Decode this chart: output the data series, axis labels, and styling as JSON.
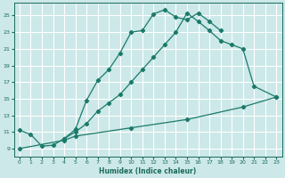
{
  "xlabel": "Humidex (Indice chaleur)",
  "bg_color": "#cce8e8",
  "grid_color": "#ffffff",
  "line_color": "#1a7a6a",
  "xlim": [
    -0.5,
    23.5
  ],
  "ylim": [
    8.0,
    26.5
  ],
  "xticks": [
    0,
    1,
    2,
    3,
    4,
    5,
    6,
    7,
    8,
    9,
    10,
    11,
    12,
    13,
    14,
    15,
    16,
    17,
    18,
    19,
    20,
    21,
    22,
    23
  ],
  "yticks": [
    9,
    11,
    13,
    15,
    17,
    19,
    21,
    23,
    25
  ],
  "curve1_x": [
    0,
    1,
    2,
    3,
    4,
    5,
    6,
    7,
    8,
    9,
    10,
    11,
    12,
    13,
    14,
    15,
    16,
    17,
    18
  ],
  "curve1_y": [
    11.2,
    10.7,
    9.3,
    9.4,
    10.2,
    11.3,
    14.8,
    17.2,
    18.5,
    20.5,
    23.0,
    23.2,
    25.2,
    25.7,
    24.8,
    24.5,
    25.3,
    24.3,
    23.2
  ],
  "curve2_x": [
    4,
    5,
    6,
    7,
    8,
    9,
    10,
    11,
    12,
    13,
    14,
    15,
    16,
    17,
    18,
    19,
    20,
    21,
    23
  ],
  "curve2_y": [
    10.2,
    11.0,
    12.0,
    13.5,
    14.5,
    15.5,
    17.0,
    18.5,
    20.0,
    21.5,
    23.0,
    25.3,
    24.3,
    23.2,
    22.0,
    21.5,
    21.0,
    16.5,
    15.2
  ],
  "curve3_x": [
    0,
    4,
    5,
    10,
    15,
    20,
    23
  ],
  "curve3_y": [
    9.0,
    10.0,
    10.5,
    11.5,
    12.5,
    14.0,
    15.2
  ]
}
